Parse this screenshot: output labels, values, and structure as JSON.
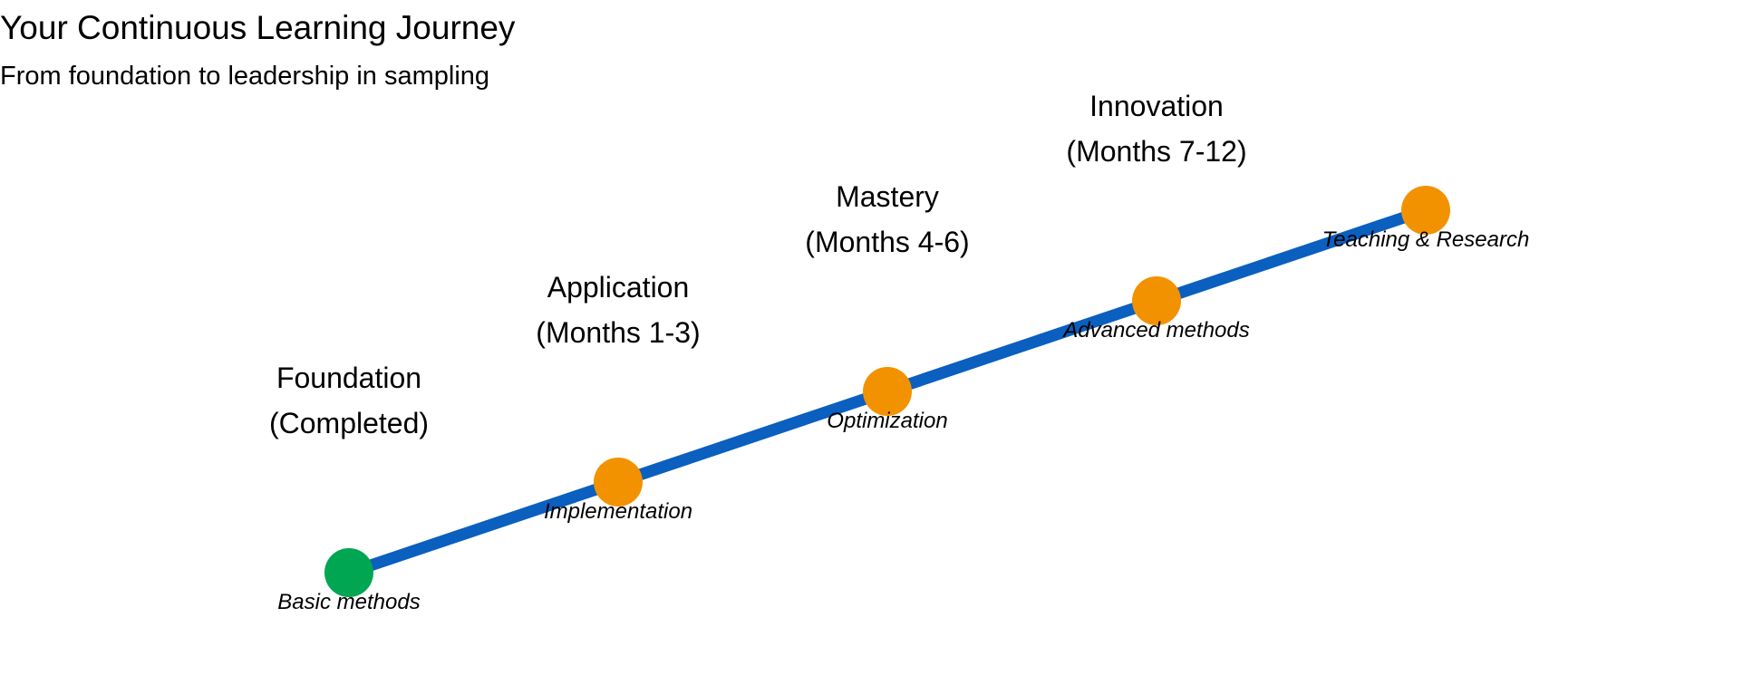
{
  "title": "Your Continuous Learning Journey",
  "subtitle": "From foundation to leadership in sampling",
  "colors": {
    "line": "#0a5fbf",
    "completed": "#00a651",
    "upcoming": "#f39200"
  },
  "stages": [
    {
      "name": "Foundation",
      "period": "(Completed)",
      "focus": "Basic methods",
      "status": "completed"
    },
    {
      "name": "Application",
      "period": "(Months 1-3)",
      "focus": "Implementation",
      "status": "upcoming"
    },
    {
      "name": "Mastery",
      "period": "(Months 4-6)",
      "focus": "Optimization",
      "status": "upcoming"
    },
    {
      "name": "Innovation",
      "period": "(Months 7-12)",
      "focus": "Advanced methods",
      "status": "upcoming"
    },
    {
      "name": "",
      "period": "",
      "focus": "Teaching & Research",
      "status": "upcoming"
    }
  ]
}
